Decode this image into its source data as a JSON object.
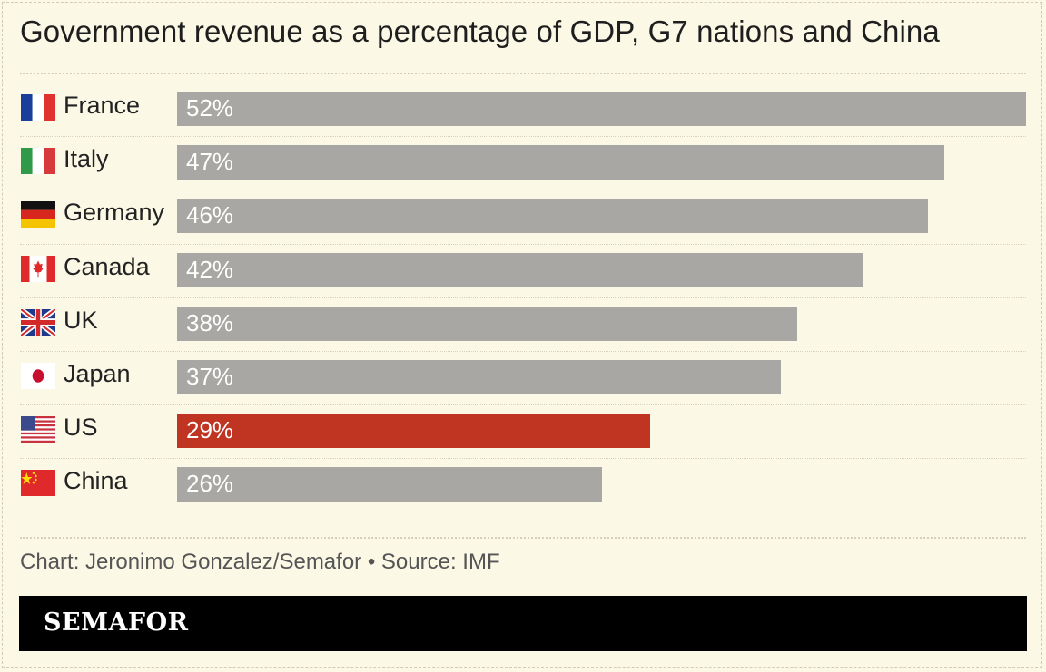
{
  "title": "Government revenue as a percentage of GDP, G7 nations and China",
  "credit": "Chart: Jeronimo Gonzalez/Semafor • Source: IMF",
  "brand": "SEMAFOR",
  "colors": {
    "background": "#fbf8e6",
    "bar": "#a8a7a3",
    "highlight": "#c03422",
    "footer": "#000000"
  },
  "chart_data": {
    "type": "bar",
    "orientation": "horizontal",
    "title": "Government revenue as a percentage of GDP, G7 nations and China",
    "xlabel": "",
    "ylabel": "",
    "xlim": [
      0,
      52
    ],
    "grid": false,
    "categories": [
      "France",
      "Italy",
      "Germany",
      "Canada",
      "UK",
      "Japan",
      "US",
      "China"
    ],
    "values": [
      52,
      47,
      46,
      42,
      38,
      37,
      29,
      26
    ],
    "data_labels": [
      "52%",
      "47%",
      "46%",
      "42%",
      "38%",
      "37%",
      "29%",
      "26%"
    ],
    "flag_icons": [
      "france-flag-icon",
      "italy-flag-icon",
      "germany-flag-icon",
      "canada-flag-icon",
      "uk-flag-icon",
      "japan-flag-icon",
      "us-flag-icon",
      "china-flag-icon"
    ],
    "highlight": "US"
  }
}
